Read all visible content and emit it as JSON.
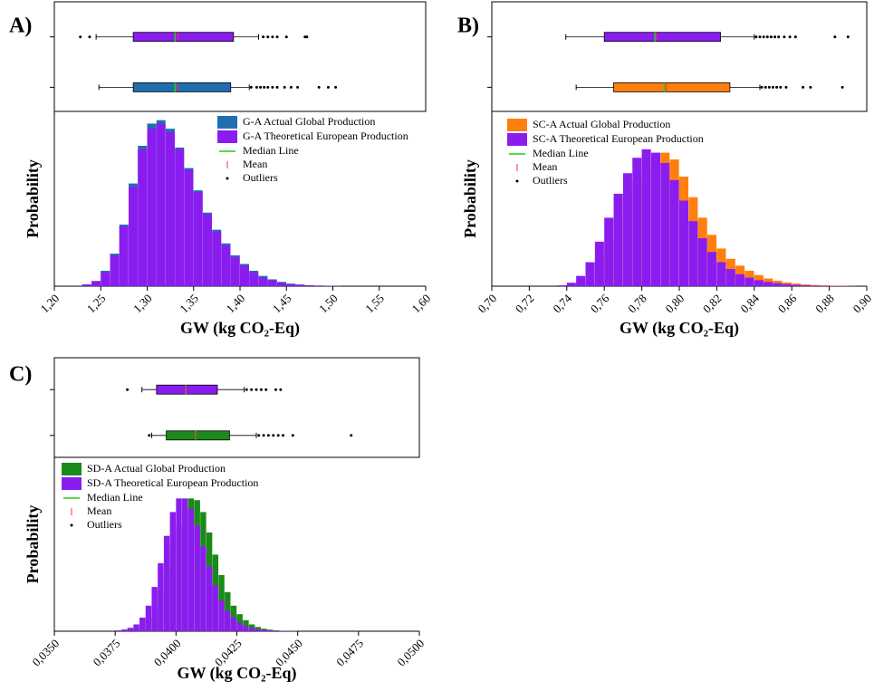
{
  "chart_data": [
    {
      "type": "histogram",
      "panel_label": "A)",
      "xlabel": "GW (kg CO₂-Eq)",
      "ylabel": "Probability",
      "xlim": [
        1.2,
        1.6
      ],
      "xticks": [
        {
          "value": 1.2,
          "label": "1,20"
        },
        {
          "value": 1.25,
          "label": "1,25"
        },
        {
          "value": 1.3,
          "label": "1,30"
        },
        {
          "value": 1.35,
          "label": "1,35"
        },
        {
          "value": 1.4,
          "label": "1,40"
        },
        {
          "value": 1.45,
          "label": "1,45"
        },
        {
          "value": 1.5,
          "label": "1,50"
        },
        {
          "value": 1.55,
          "label": "1,55"
        },
        {
          "value": 1.6,
          "label": "1,60"
        }
      ],
      "ylim": [
        0,
        1
      ],
      "bins": [
        1.23,
        1.24,
        1.25,
        1.26,
        1.27,
        1.28,
        1.29,
        1.3,
        1.31,
        1.32,
        1.33,
        1.34,
        1.35,
        1.36,
        1.37,
        1.38,
        1.39,
        1.4,
        1.41,
        1.42,
        1.43,
        1.44,
        1.45,
        1.46,
        1.47,
        1.48,
        1.49,
        1.5,
        1.51
      ],
      "series": [
        {
          "name": "G-A Actual Global Production",
          "color": "#1f6fb0",
          "values": [
            0.01,
            0.03,
            0.09,
            0.19,
            0.36,
            0.6,
            0.82,
            0.95,
            0.97,
            0.92,
            0.81,
            0.69,
            0.56,
            0.43,
            0.33,
            0.25,
            0.18,
            0.13,
            0.09,
            0.06,
            0.04,
            0.025,
            0.015,
            0.01,
            0.006,
            0.004,
            0.002,
            0.001
          ],
          "box": {
            "whisker_low": 1.248,
            "q1": 1.285,
            "median": 1.33,
            "q3": 1.39,
            "whisker_high": 1.41,
            "mean": 1.332,
            "outliers": [
              1.412,
              1.418,
              1.422,
              1.426,
              1.43,
              1.435,
              1.44,
              1.448,
              1.455,
              1.462,
              1.485,
              1.495,
              1.503
            ]
          }
        },
        {
          "name": "G-A Theoretical European Production",
          "color": "#8b1cf0",
          "values": [
            0.01,
            0.03,
            0.08,
            0.18,
            0.35,
            0.58,
            0.8,
            0.92,
            0.95,
            0.9,
            0.8,
            0.68,
            0.55,
            0.42,
            0.32,
            0.24,
            0.17,
            0.12,
            0.08,
            0.05,
            0.035,
            0.02,
            0.012,
            0.008,
            0.005,
            0.003,
            0.002,
            0.001
          ],
          "box": {
            "whisker_low": 1.245,
            "q1": 1.285,
            "median": 1.33,
            "q3": 1.393,
            "whisker_high": 1.42,
            "mean": 1.333,
            "outliers": [
              1.228,
              1.238,
              1.425,
              1.43,
              1.435,
              1.44,
              1.45,
              1.47,
              1.472
            ]
          }
        }
      ],
      "legend_extra": [
        "Median Line",
        "Mean",
        "Outliers"
      ],
      "median_color": "#22cc22",
      "mean_color": "#ff3030"
    },
    {
      "type": "histogram",
      "panel_label": "B)",
      "xlabel": "GW (kg CO₂-Eq)",
      "ylabel": "Probability",
      "xlim": [
        0.7,
        0.9
      ],
      "xticks": [
        {
          "value": 0.7,
          "label": "0,70"
        },
        {
          "value": 0.72,
          "label": "0,72"
        },
        {
          "value": 0.74,
          "label": "0,74"
        },
        {
          "value": 0.76,
          "label": "0,76"
        },
        {
          "value": 0.78,
          "label": "0,78"
        },
        {
          "value": 0.8,
          "label": "0,80"
        },
        {
          "value": 0.82,
          "label": "0,82"
        },
        {
          "value": 0.84,
          "label": "0,84"
        },
        {
          "value": 0.86,
          "label": "0,86"
        },
        {
          "value": 0.88,
          "label": "0,88"
        },
        {
          "value": 0.9,
          "label": "0,90"
        }
      ],
      "ylim": [
        0,
        1
      ],
      "bins": [
        0.735,
        0.74,
        0.745,
        0.75,
        0.755,
        0.76,
        0.765,
        0.77,
        0.775,
        0.78,
        0.785,
        0.79,
        0.795,
        0.8,
        0.805,
        0.81,
        0.815,
        0.82,
        0.825,
        0.83,
        0.835,
        0.84,
        0.845,
        0.85,
        0.855,
        0.86,
        0.865,
        0.87,
        0.875,
        0.88,
        0.885,
        0.89,
        0.895
      ],
      "series": [
        {
          "name": "SC-A Actual Global Production",
          "color": "#ff7f0e",
          "values": [
            0.003,
            0.01,
            0.03,
            0.08,
            0.16,
            0.27,
            0.4,
            0.52,
            0.62,
            0.7,
            0.76,
            0.78,
            0.74,
            0.64,
            0.52,
            0.4,
            0.3,
            0.22,
            0.16,
            0.12,
            0.09,
            0.065,
            0.045,
            0.032,
            0.022,
            0.015,
            0.01,
            0.007,
            0.005,
            0.003,
            0.002,
            0.001
          ],
          "box": {
            "whisker_low": 0.745,
            "q1": 0.765,
            "median": 0.792,
            "q3": 0.827,
            "whisker_high": 0.843,
            "mean": 0.793,
            "outliers": [
              0.844,
              0.846,
              0.848,
              0.85,
              0.852,
              0.854,
              0.857,
              0.866,
              0.87,
              0.887
            ]
          }
        },
        {
          "name": "SC-A Theoretical European Production",
          "color": "#8b1cf0",
          "values": [
            0.005,
            0.02,
            0.06,
            0.14,
            0.26,
            0.4,
            0.54,
            0.66,
            0.75,
            0.8,
            0.78,
            0.72,
            0.62,
            0.5,
            0.38,
            0.28,
            0.2,
            0.14,
            0.1,
            0.07,
            0.05,
            0.035,
            0.025,
            0.018,
            0.012,
            0.008,
            0.005,
            0.003,
            0.002,
            0.001,
            0.001,
            0
          ],
          "box": {
            "whisker_low": 0.7395,
            "q1": 0.76,
            "median": 0.787,
            "q3": 0.822,
            "whisker_high": 0.84,
            "mean": 0.788,
            "outliers": [
              0.841,
              0.843,
              0.845,
              0.847,
              0.849,
              0.851,
              0.853,
              0.856,
              0.859,
              0.862,
              0.883,
              0.89
            ]
          }
        }
      ],
      "legend_extra": [
        "Median Line",
        "Mean",
        "Outliers"
      ],
      "median_color": "#22cc22",
      "mean_color": "#ff3030"
    },
    {
      "type": "histogram",
      "panel_label": "C)",
      "xlabel": "GW (kg CO₂-Eq)",
      "ylabel": "Probability",
      "xlim": [
        0.035,
        0.05
      ],
      "xticks": [
        {
          "value": 0.035,
          "label": "0,0350"
        },
        {
          "value": 0.0375,
          "label": "0,0375"
        },
        {
          "value": 0.04,
          "label": "0,0400"
        },
        {
          "value": 0.0425,
          "label": "0,0425"
        },
        {
          "value": 0.045,
          "label": "0,0450"
        },
        {
          "value": 0.0475,
          "label": "0,0475"
        },
        {
          "value": 0.05,
          "label": "0,0500"
        }
      ],
      "ylim": [
        0,
        1
      ],
      "bins": [
        0.0375,
        0.03775,
        0.038,
        0.03825,
        0.0385,
        0.03875,
        0.039,
        0.03925,
        0.0395,
        0.03975,
        0.04,
        0.04025,
        0.0405,
        0.04075,
        0.041,
        0.04125,
        0.0415,
        0.04175,
        0.042,
        0.04225,
        0.0425,
        0.04275,
        0.043,
        0.04325,
        0.0435,
        0.04375,
        0.044,
        0.04425,
        0.0445,
        0.04475,
        0.045
      ],
      "series": [
        {
          "name": "SD-A Actual Global Production",
          "color": "#1a8a1a",
          "values": [
            0.002,
            0.005,
            0.01,
            0.02,
            0.04,
            0.08,
            0.14,
            0.24,
            0.36,
            0.5,
            0.62,
            0.72,
            0.78,
            0.77,
            0.7,
            0.58,
            0.45,
            0.33,
            0.23,
            0.15,
            0.1,
            0.065,
            0.04,
            0.025,
            0.015,
            0.009,
            0.005,
            0.003,
            0.002,
            0.001
          ],
          "box": {
            "whisker_low": 0.039,
            "q1": 0.0396,
            "median": 0.0408,
            "q3": 0.0422,
            "whisker_high": 0.0433,
            "mean": 0.0408,
            "outliers": [
              0.0389,
              0.0434,
              0.0436,
              0.0438,
              0.044,
              0.0442,
              0.0444,
              0.0448,
              0.0472
            ]
          }
        },
        {
          "name": "SD-A Theoretical European Production",
          "color": "#8b1cf0",
          "values": [
            0.005,
            0.01,
            0.02,
            0.04,
            0.08,
            0.15,
            0.26,
            0.4,
            0.56,
            0.7,
            0.78,
            0.78,
            0.72,
            0.62,
            0.5,
            0.38,
            0.27,
            0.18,
            0.12,
            0.08,
            0.05,
            0.03,
            0.02,
            0.012,
            0.008,
            0.005,
            0.003,
            0.002,
            0.001,
            0.001
          ],
          "box": {
            "whisker_low": 0.0386,
            "q1": 0.0392,
            "median": 0.0404,
            "q3": 0.0417,
            "whisker_high": 0.0428,
            "mean": 0.0404,
            "outliers": [
              0.038,
              0.0429,
              0.0431,
              0.0433,
              0.0435,
              0.0437,
              0.0441,
              0.0443
            ]
          }
        }
      ],
      "legend_extra": [
        "Median Line",
        "Mean",
        "Outliers"
      ],
      "median_color": "#22cc22",
      "mean_color": "#ff3030"
    }
  ]
}
